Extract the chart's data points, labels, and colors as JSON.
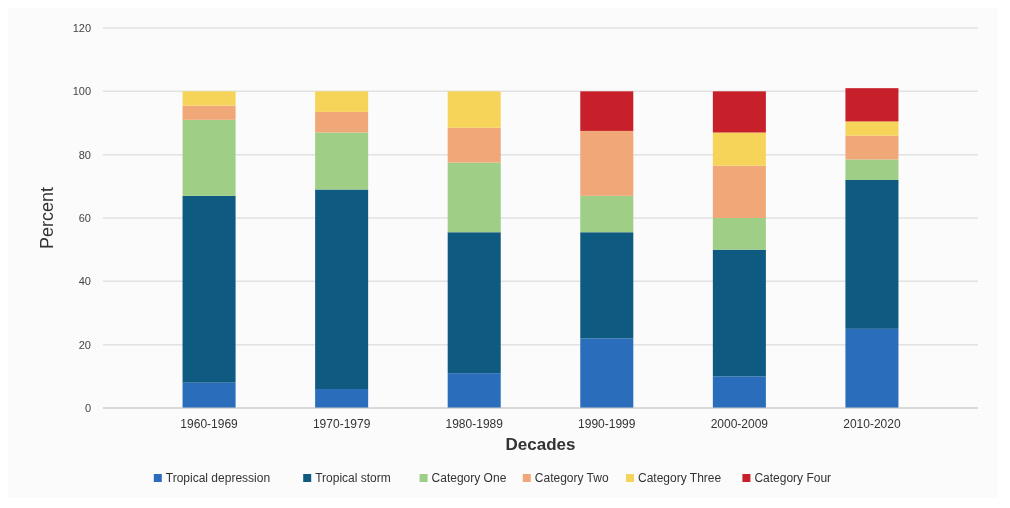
{
  "chart_data": {
    "type": "bar",
    "stacked": true,
    "xlabel": "Decades",
    "ylabel": "Percent",
    "categories": [
      "1960-1969",
      "1970-1979",
      "1980-1989",
      "1990-1999",
      "2000-2009",
      "2010-2020"
    ],
    "series": [
      {
        "name": "Tropical depression",
        "color": "#2a6ebb",
        "values": [
          8,
          6,
          11,
          22,
          10,
          25
        ]
      },
      {
        "name": "Tropical storm",
        "color": "#0e5a80",
        "values": [
          59,
          63,
          44.5,
          33.5,
          40,
          47
        ]
      },
      {
        "name": "Category One",
        "color": "#9fcf86",
        "values": [
          24,
          18,
          22,
          11.5,
          10,
          6.5
        ]
      },
      {
        "name": "Category Two",
        "color": "#f0a878",
        "values": [
          4.5,
          6.5,
          11,
          20.5,
          16.5,
          7.5
        ]
      },
      {
        "name": "Category Three",
        "color": "#f6d45a",
        "values": [
          4.5,
          6.5,
          11.5,
          0,
          10.5,
          4.5
        ]
      },
      {
        "name": "Category Four",
        "color": "#c8202a",
        "values": [
          0,
          0,
          0,
          12.5,
          13,
          10.5
        ]
      }
    ],
    "ylim": [
      0,
      120
    ],
    "yticks": [
      0,
      20,
      40,
      60,
      80,
      100,
      120
    ],
    "grid": "y",
    "legend": "bottom"
  }
}
